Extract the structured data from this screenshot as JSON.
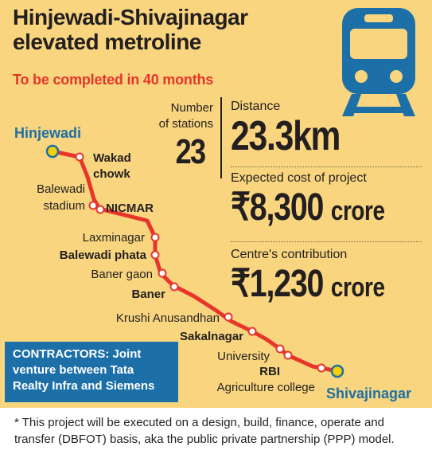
{
  "header": {
    "title_line1": "Hinjewadi-Shivajinagar",
    "title_line2": "elevated metroline",
    "subtitle": "To be completed in 40 months"
  },
  "icon": "train-front-icon",
  "stations": {
    "label_line1": "Number",
    "label_line2": "of stations",
    "value": "23"
  },
  "stats": [
    {
      "label": "Distance",
      "value": "23.3km",
      "unit": ""
    },
    {
      "label": "Expected cost of project",
      "value": "₹8,300",
      "unit": "crore"
    },
    {
      "label": "Centre's contribution",
      "value": "₹1,230",
      "unit": "crore"
    }
  ],
  "route": {
    "start": "Hinjewadi",
    "end": "Shivajinagar",
    "stops": [
      {
        "name": "Wakad",
        "name2": "chowk",
        "bold": true
      },
      {
        "name": "Balewadi",
        "name2": "stadium",
        "bold": false
      },
      {
        "name": "NICMAR",
        "bold": true
      },
      {
        "name": "Laxminagar",
        "bold": false
      },
      {
        "name": "Balewadi phata",
        "bold": true
      },
      {
        "name": "Baner gaon",
        "bold": false
      },
      {
        "name": "Baner",
        "bold": true
      },
      {
        "name": "Krushi Anusandhan",
        "bold": false
      },
      {
        "name": "Sakalnagar",
        "bold": true
      },
      {
        "name": "University",
        "bold": false
      },
      {
        "name": "RBI",
        "bold": true
      },
      {
        "name": "Agriculture college",
        "bold": false
      }
    ]
  },
  "contractors": {
    "line1": "CONTRACTORS: Joint",
    "line2": "venture between Tata",
    "line3": "Realty Infra and Siemens"
  },
  "footnote": {
    "line1": "*  This project will be executed on a design, build, finance, operate and",
    "line2": "transfer (DBFOT) basis, aka the public private partnership (PPP) model."
  },
  "colors": {
    "background": "#f8d57e",
    "route_line": "#e8352b",
    "accent_blue": "#1d6fa8",
    "subtitle_red": "#e8352b",
    "terminal_dot": "#f5d000"
  }
}
